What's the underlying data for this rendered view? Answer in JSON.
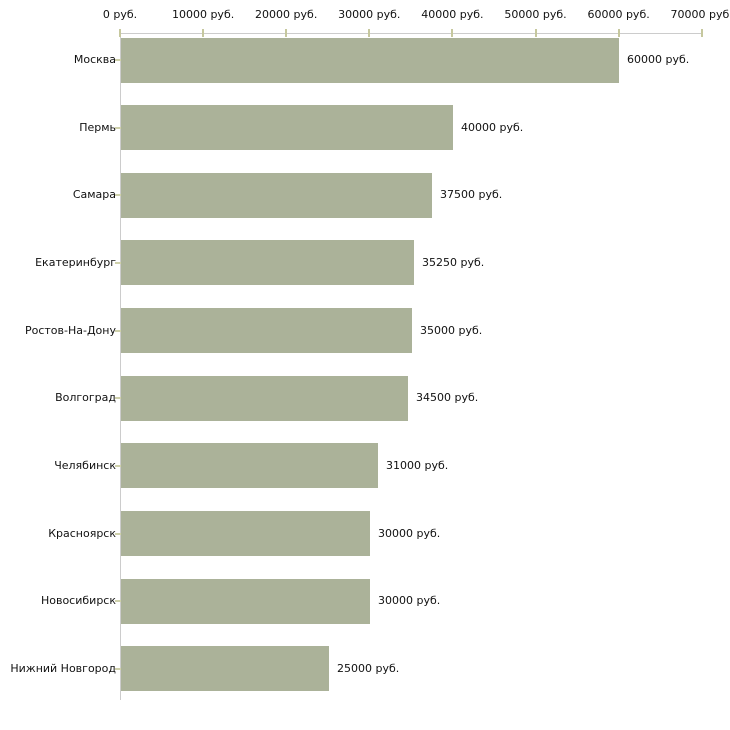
{
  "chart_data": {
    "type": "bar",
    "orientation": "horizontal",
    "title": "",
    "xlabel": "",
    "ylabel": "",
    "grid": false,
    "legend": null,
    "categories": [
      "Москва",
      "Пермь",
      "Самара",
      "Екатеринбург",
      "Ростов-На-Дону",
      "Волгоград",
      "Челябинск",
      "Красноярск",
      "Новосибирск",
      "Нижний Новгород"
    ],
    "values": [
      60000,
      40000,
      37500,
      35250,
      35000,
      34500,
      31000,
      30000,
      30000,
      25000
    ],
    "value_labels": [
      "60000 руб.",
      "40000 руб.",
      "37500 руб.",
      "35250 руб.",
      "35000 руб.",
      "34500 руб.",
      "31000 руб.",
      "30000 руб.",
      "30000 руб.",
      "25000 руб."
    ],
    "x_axis": {
      "position": "top",
      "xlim": [
        0,
        70000
      ],
      "ticks": [
        0,
        10000,
        20000,
        30000,
        40000,
        50000,
        60000,
        70000
      ],
      "tick_labels": [
        "0 руб.",
        "10000 руб.",
        "20000 руб.",
        "30000 руб.",
        "40000 руб.",
        "50000 руб.",
        "60000 руб.",
        "70000 руб."
      ]
    },
    "colors": {
      "bar_fill": "#abb299",
      "axis_line": "#cccccc",
      "tick_mark": "#c6c89e",
      "text": "#111111",
      "background": "#ffffff"
    }
  }
}
